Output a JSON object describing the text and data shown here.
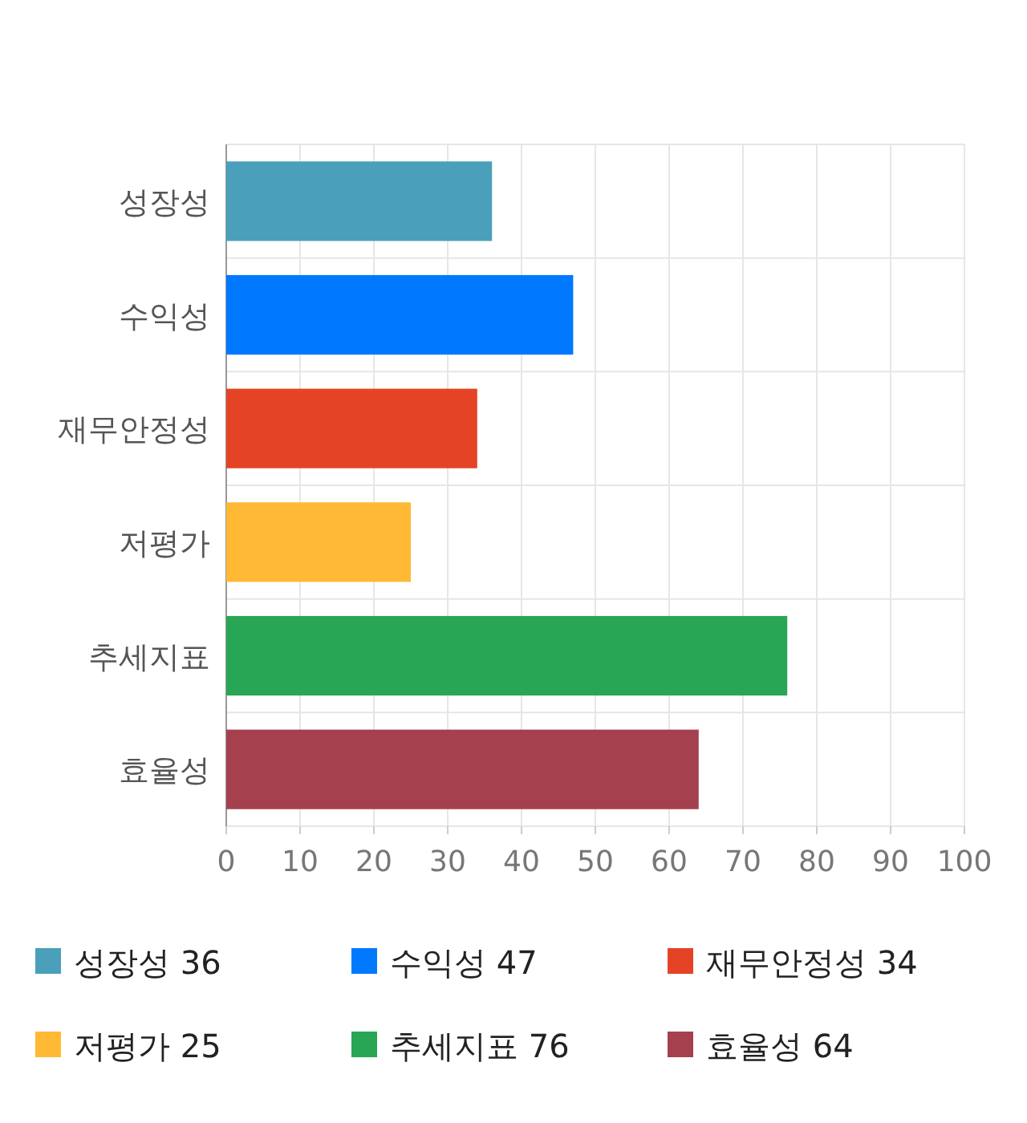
{
  "chart_data": {
    "type": "bar",
    "orientation": "horizontal",
    "categories": [
      "성장성",
      "수익성",
      "재무안정성",
      "저평가",
      "추세지표",
      "효율성"
    ],
    "series": [
      {
        "name": "성장성 36",
        "color": "#4aa0ba",
        "values": [
          36,
          null,
          null,
          null,
          null,
          null
        ]
      },
      {
        "name": "수익성 47",
        "color": "#0079ff",
        "values": [
          null,
          47,
          null,
          null,
          null,
          null
        ]
      },
      {
        "name": "재무안정성 34",
        "color": "#e44425",
        "values": [
          null,
          null,
          34,
          null,
          null,
          null
        ]
      },
      {
        "name": "저평가 25",
        "color": "#ffb934",
        "values": [
          null,
          null,
          null,
          25,
          null,
          null
        ]
      },
      {
        "name": "추세지표 76",
        "color": "#28a655",
        "values": [
          null,
          null,
          null,
          null,
          76,
          null
        ]
      },
      {
        "name": "효율성 64",
        "color": "#a5404f",
        "values": [
          null,
          null,
          null,
          null,
          null,
          64
        ]
      }
    ],
    "xlim": [
      0,
      100
    ],
    "xticks": [
      0,
      10,
      20,
      30,
      40,
      50,
      60,
      70,
      80,
      90,
      100
    ],
    "grid": true,
    "legend": "bottom"
  }
}
